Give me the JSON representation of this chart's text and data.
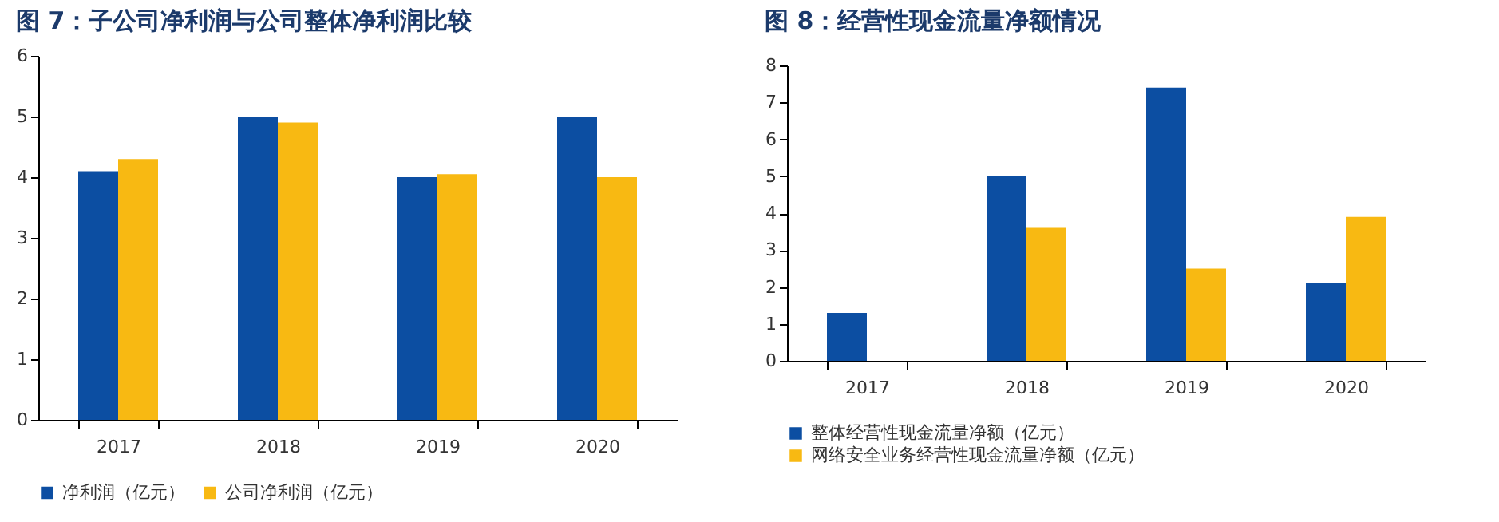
{
  "chart_data": [
    {
      "type": "bar",
      "title": "图 7：子公司净利润与公司整体净利润比较",
      "categories": [
        "2017",
        "2018",
        "2019",
        "2020"
      ],
      "series": [
        {
          "name": "净利润（亿元）",
          "color": "#0c4ea2",
          "values": [
            4.1,
            5.0,
            4.0,
            5.0
          ]
        },
        {
          "name": "公司净利润（亿元）",
          "color": "#f8b912",
          "values": [
            4.3,
            4.9,
            4.05,
            4.0
          ]
        }
      ],
      "ylim": [
        0,
        6
      ],
      "yticks": [
        0,
        1,
        2,
        3,
        4,
        5,
        6
      ],
      "grid": false,
      "legend": "bottom"
    },
    {
      "type": "bar",
      "title": "图 8：经营性现金流量净额情况",
      "categories": [
        "2017",
        "2018",
        "2019",
        "2020"
      ],
      "series": [
        {
          "name": "整体经营性现金流量净额（亿元）",
          "color": "#0c4ea2",
          "values": [
            1.3,
            5.0,
            7.4,
            2.1
          ]
        },
        {
          "name": "网络安全业务经营性现金流量净额（亿元）",
          "color": "#f8b912",
          "values": [
            null,
            3.6,
            2.5,
            3.9
          ]
        }
      ],
      "ylim": [
        0,
        8
      ],
      "yticks": [
        0,
        1,
        2,
        3,
        4,
        5,
        6,
        7,
        8
      ],
      "grid": false,
      "legend": "bottom"
    }
  ]
}
